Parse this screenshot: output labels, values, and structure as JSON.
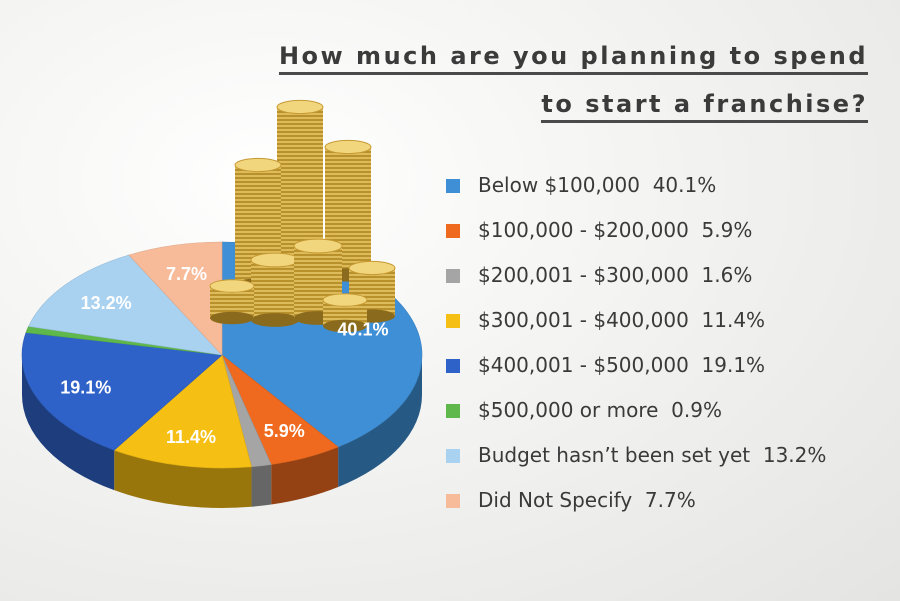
{
  "title_line1": "How much are you planning to spend",
  "title_line2": "to start a franchise?",
  "chart_data": {
    "type": "pie",
    "title": "How much are you planning to spend to start a franchise?",
    "unit": "%",
    "slices": [
      {
        "label": "Below $100,000",
        "value": 40.1,
        "display": "40.1%",
        "color": "#3f8fd6"
      },
      {
        "label": "$100,000 - $200,000",
        "value": 5.9,
        "display": "5.9%",
        "color": "#ef6a1e"
      },
      {
        "label": "$200,001 - $300,000",
        "value": 1.6,
        "display": "1.6%",
        "color": "#a5a5a5"
      },
      {
        "label": "$300,001 - $400,000",
        "value": 11.4,
        "display": "11.4%",
        "color": "#f6bf13"
      },
      {
        "label": "$400,001 - $500,000",
        "value": 19.1,
        "display": "19.1%",
        "color": "#2f62c8"
      },
      {
        "label": "$500,000 or more",
        "value": 0.9,
        "display": "0.9%",
        "color": "#5fb84b"
      },
      {
        "label": "Budget hasn’t been set yet",
        "value": 13.2,
        "display": "13.2%",
        "color": "#a9d2f0"
      },
      {
        "label": "Did Not Specify",
        "value": 7.7,
        "display": "7.7%",
        "color": "#f7bb9a"
      }
    ],
    "slice_labels_shown": [
      "40.1%",
      "5.9%",
      "11.4%",
      "19.1%",
      "13.2%",
      "7.7%"
    ]
  },
  "legend": [
    {
      "label": "Below $100,000",
      "value": "40.1%"
    },
    {
      "label": "$100,000 - $200,000",
      "value": "5.9%"
    },
    {
      "label": "$200,001 - $300,000",
      "value": "1.6%"
    },
    {
      "label": "$300,001 - $400,000",
      "value": "11.4%"
    },
    {
      "label": "$400,001 - $500,000",
      "value": "19.1%"
    },
    {
      "label": "$500,000 or more",
      "value": "0.9%"
    },
    {
      "label": "Budget hasn’t been set yet",
      "value": "13.2%"
    },
    {
      "label": "Did Not Specify",
      "value": "7.7%"
    }
  ],
  "decoration": "coin-stacks-icon"
}
